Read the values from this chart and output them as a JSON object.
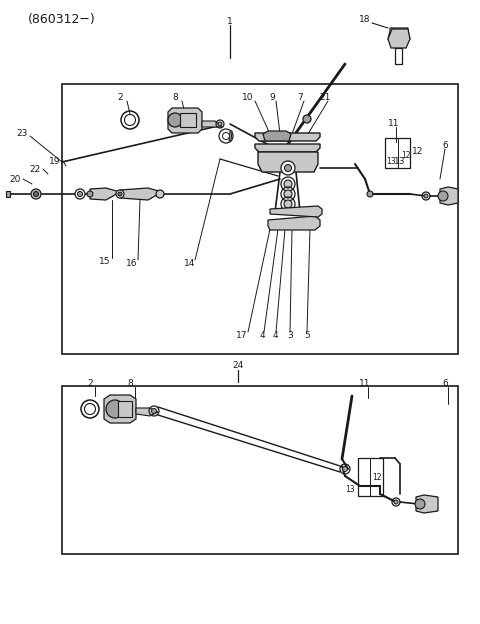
{
  "bg": "#ffffff",
  "lc": "#1a1a1a",
  "grey1": "#c8c8c8",
  "grey2": "#a0a0a0",
  "grey3": "#707070",
  "title": "(860312−)",
  "dpi": 100,
  "fw": 4.8,
  "fh": 6.24
}
